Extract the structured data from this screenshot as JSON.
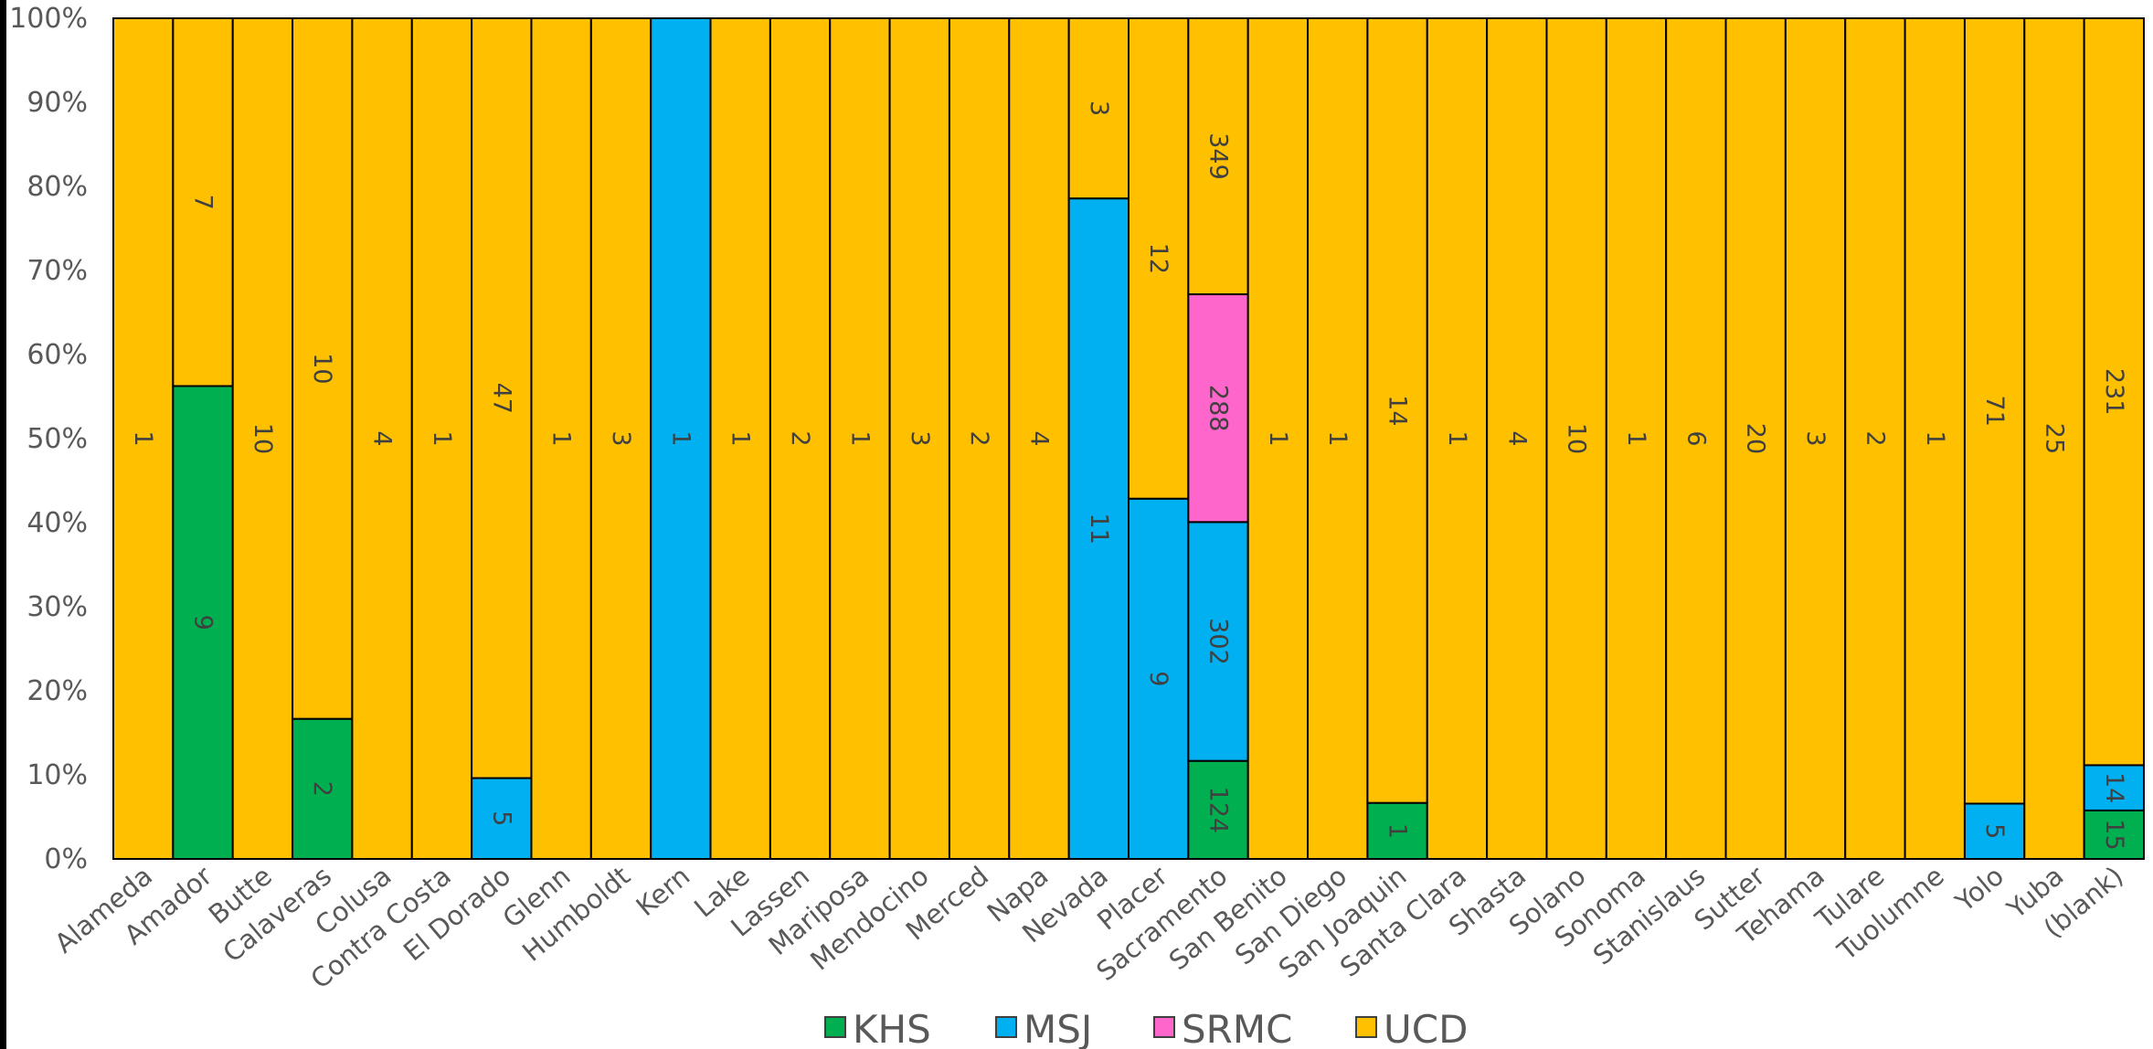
{
  "chart_data": {
    "type": "bar",
    "stacked": "percent",
    "categories": [
      "Alameda",
      "Amador",
      "Butte",
      "Calaveras",
      "Colusa",
      "Contra Costa",
      "El Dorado",
      "Glenn",
      "Humboldt",
      "Kern",
      "Lake",
      "Lassen",
      "Mariposa",
      "Mendocino",
      "Merced",
      "Napa",
      "Nevada",
      "Placer",
      "Sacramento",
      "San Benito",
      "San Diego",
      "San Joaquin",
      "Santa Clara",
      "Shasta",
      "Solano",
      "Sonoma",
      "Stanislaus",
      "Sutter",
      "Tehama",
      "Tulare",
      "Tuolumne",
      "Yolo",
      "Yuba",
      "(blank)"
    ],
    "series": [
      {
        "name": "KHS",
        "color": "#00B050",
        "values": [
          0,
          9,
          0,
          2,
          0,
          0,
          0,
          0,
          0,
          0,
          0,
          0,
          0,
          0,
          0,
          0,
          0,
          0,
          124,
          0,
          0,
          1,
          0,
          0,
          0,
          0,
          0,
          0,
          0,
          0,
          0,
          0,
          0,
          15
        ]
      },
      {
        "name": "MSJ",
        "color": "#00B0F0",
        "values": [
          0,
          0,
          0,
          0,
          0,
          0,
          5,
          0,
          0,
          1,
          0,
          0,
          0,
          0,
          0,
          0,
          11,
          9,
          302,
          0,
          0,
          0,
          0,
          0,
          0,
          0,
          0,
          0,
          0,
          0,
          0,
          5,
          0,
          14
        ]
      },
      {
        "name": "SRMC",
        "color": "#FF66CC",
        "values": [
          0,
          0,
          0,
          0,
          0,
          0,
          0,
          0,
          0,
          0,
          0,
          0,
          0,
          0,
          0,
          0,
          0,
          0,
          288,
          0,
          0,
          0,
          0,
          0,
          0,
          0,
          0,
          0,
          0,
          0,
          0,
          0,
          0,
          0
        ]
      },
      {
        "name": "UCD",
        "color": "#FFC000",
        "values": [
          1,
          7,
          10,
          10,
          4,
          1,
          47,
          1,
          3,
          0,
          1,
          2,
          1,
          3,
          2,
          4,
          3,
          12,
          349,
          1,
          1,
          14,
          1,
          4,
          10,
          1,
          6,
          20,
          3,
          2,
          1,
          71,
          25,
          231
        ]
      }
    ],
    "y_ticks": [
      "0%",
      "10%",
      "20%",
      "30%",
      "40%",
      "50%",
      "60%",
      "70%",
      "80%",
      "90%",
      "100%"
    ],
    "ylim": [
      0,
      100
    ],
    "legend_position": "bottom",
    "grid": false,
    "data_labels": true
  }
}
